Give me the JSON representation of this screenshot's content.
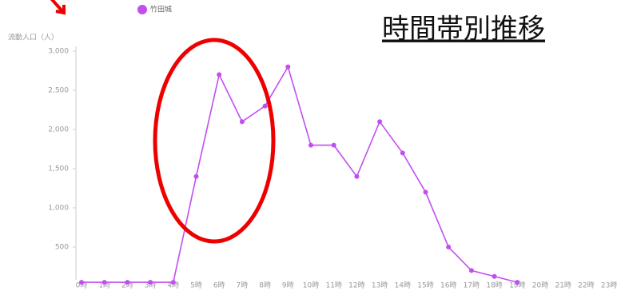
{
  "chart_data": {
    "type": "line",
    "title": "時間帯別推移",
    "y_label": "流動人口（人）",
    "categories": [
      "0時",
      "1時",
      "2時",
      "3時",
      "4時",
      "5時",
      "6時",
      "7時",
      "8時",
      "9時",
      "10時",
      "11時",
      "12時",
      "13時",
      "14時",
      "15時",
      "16時",
      "17時",
      "18時",
      "19時",
      "20時",
      "21時",
      "22時",
      "23時"
    ],
    "series": [
      {
        "name": "竹田城",
        "color": "#c24ef0",
        "values": [
          50,
          50,
          50,
          50,
          50,
          1400,
          2700,
          2100,
          2300,
          2800,
          1800,
          1800,
          1400,
          2100,
          1700,
          1200,
          500,
          200,
          125,
          50,
          null,
          null,
          null,
          null
        ]
      }
    ],
    "ylim": [
      0,
      3000
    ],
    "yticks": [
      {
        "value": 500,
        "label": "500"
      },
      {
        "value": 1000,
        "label": "1,000"
      },
      {
        "value": 1500,
        "label": "1,500"
      },
      {
        "value": 2000,
        "label": "2,000"
      },
      {
        "value": 2500,
        "label": "2,500"
      },
      {
        "value": 3000,
        "label": "3,000"
      }
    ]
  }
}
